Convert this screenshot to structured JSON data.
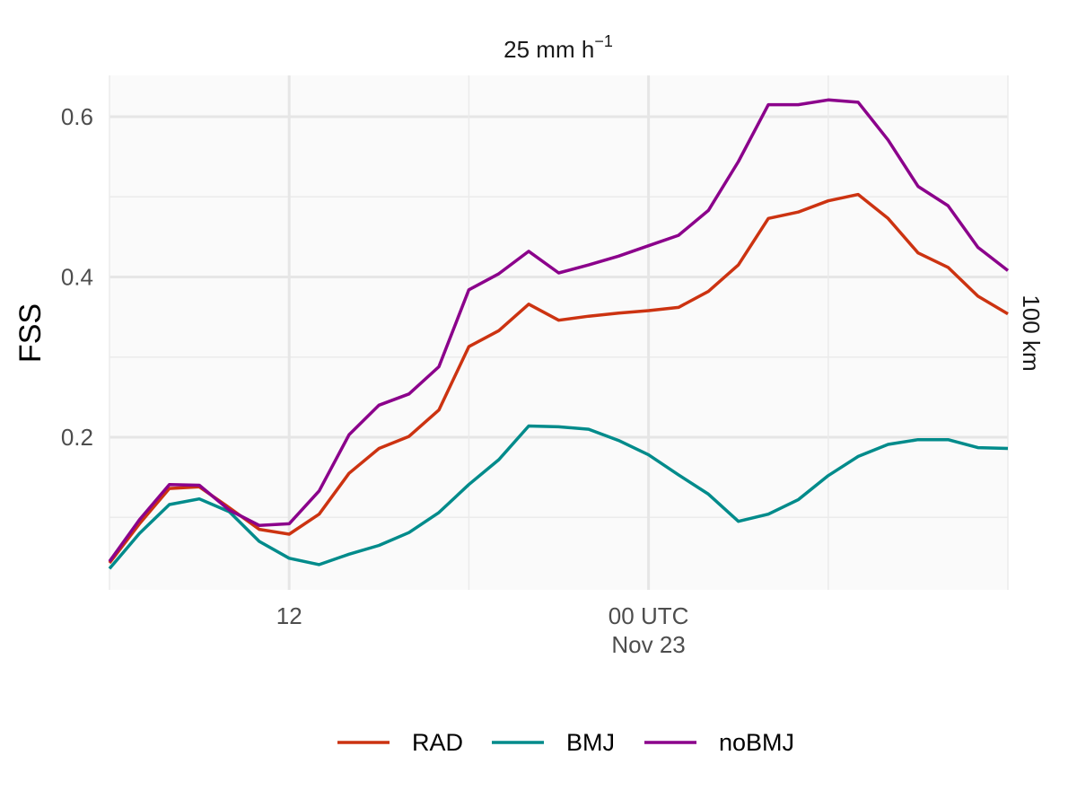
{
  "chart_data": {
    "type": "line",
    "title": "25 mm h",
    "title_superscript": "−1",
    "ylabel": "FSS",
    "xlabel": "",
    "facet_label": "100 km",
    "ylim": [
      0.0,
      0.65
    ],
    "y_ticks": [
      0.2,
      0.4,
      0.6
    ],
    "y_tick_labels": [
      "0.2",
      "0.4",
      "0.6"
    ],
    "x_hours_range": [
      6,
      36
    ],
    "x_major_ticks": [
      12,
      24
    ],
    "x_tick_labels": [
      {
        "hour": 12,
        "lines": [
          "12"
        ]
      },
      {
        "hour": 24,
        "lines": [
          "00 UTC",
          "Nov 23"
        ]
      }
    ],
    "x_minor_ticks": [
      6,
      18,
      30,
      36
    ],
    "grid": true,
    "legend_position": "bottom",
    "x": [
      6,
      7,
      8,
      9,
      10,
      11,
      12,
      13,
      14,
      15,
      16,
      17,
      18,
      19,
      20,
      21,
      22,
      23,
      24,
      25,
      26,
      27,
      28,
      29,
      30,
      31,
      32,
      33,
      34,
      35,
      36
    ],
    "series": [
      {
        "name": "RAD",
        "color": "#cc3311",
        "values": [
          0.043,
          0.092,
          0.136,
          0.138,
          0.112,
          0.085,
          0.079,
          0.104,
          0.155,
          0.186,
          0.201,
          0.234,
          0.313,
          0.333,
          0.366,
          0.346,
          0.351,
          0.355,
          0.358,
          0.362,
          0.382,
          0.415,
          0.473,
          0.481,
          0.495,
          0.503,
          0.473,
          0.43,
          0.412,
          0.376,
          0.354
        ]
      },
      {
        "name": "BMJ",
        "color": "#008b8b",
        "values": [
          0.036,
          0.08,
          0.116,
          0.123,
          0.107,
          0.07,
          0.049,
          0.041,
          0.054,
          0.065,
          0.081,
          0.106,
          0.141,
          0.172,
          0.214,
          0.213,
          0.21,
          0.196,
          0.178,
          0.153,
          0.129,
          0.095,
          0.104,
          0.122,
          0.152,
          0.176,
          0.191,
          0.197,
          0.197,
          0.187,
          0.186
        ]
      },
      {
        "name": "noBMJ",
        "color": "#8b008b",
        "values": [
          0.045,
          0.097,
          0.141,
          0.14,
          0.109,
          0.09,
          0.092,
          0.133,
          0.203,
          0.24,
          0.254,
          0.288,
          0.384,
          0.404,
          0.432,
          0.405,
          0.415,
          0.426,
          0.439,
          0.452,
          0.483,
          0.544,
          0.615,
          0.615,
          0.621,
          0.618,
          0.571,
          0.513,
          0.489,
          0.437,
          0.408
        ]
      }
    ]
  }
}
